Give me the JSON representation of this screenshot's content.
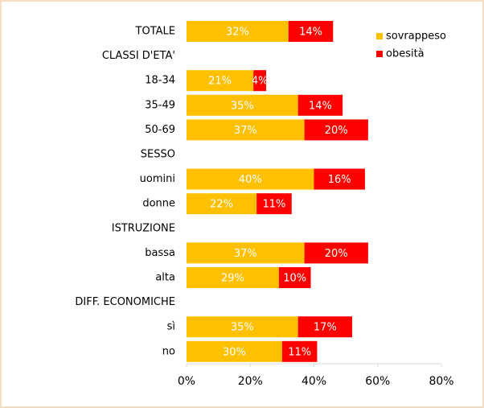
{
  "chart_data": {
    "type": "stacked_barh",
    "categories": [
      "TOTALE",
      "CLASSI D'ETA'",
      "18-34",
      "35-49",
      "50-69",
      "SESSO",
      "uomini",
      "donne",
      "ISTRUZIONE",
      "bassa",
      "alta",
      "DIFF. ECONOMICHE",
      "sì",
      "no"
    ],
    "series": [
      {
        "name": "sovrappeso",
        "color": "#FFC000",
        "values": [
          32,
          null,
          21,
          35,
          37,
          null,
          40,
          22,
          null,
          37,
          29,
          null,
          35,
          30
        ],
        "value_labels": [
          "32%",
          null,
          "21%",
          "35%",
          "37%",
          null,
          "40%",
          "22%",
          null,
          "37%",
          "29%",
          null,
          "35%",
          "30%"
        ]
      },
      {
        "name": "obesità",
        "color": "#FF0000",
        "values": [
          14,
          null,
          4,
          14,
          20,
          null,
          16,
          11,
          null,
          20,
          10,
          null,
          17,
          11
        ],
        "value_labels": [
          "14%",
          null,
          "4%",
          "14%",
          "20%",
          null,
          "16%",
          "11%",
          null,
          "20%",
          "10%",
          null,
          "17%",
          "11%"
        ]
      }
    ],
    "xlim": [
      0,
      80
    ],
    "xticks": [
      {
        "value": 0,
        "label": "0%"
      },
      {
        "value": 20,
        "label": "20%"
      },
      {
        "value": 40,
        "label": "40%"
      },
      {
        "value": 60,
        "label": "60%"
      },
      {
        "value": 80,
        "label": "80%"
      }
    ],
    "legend": "top-right"
  }
}
